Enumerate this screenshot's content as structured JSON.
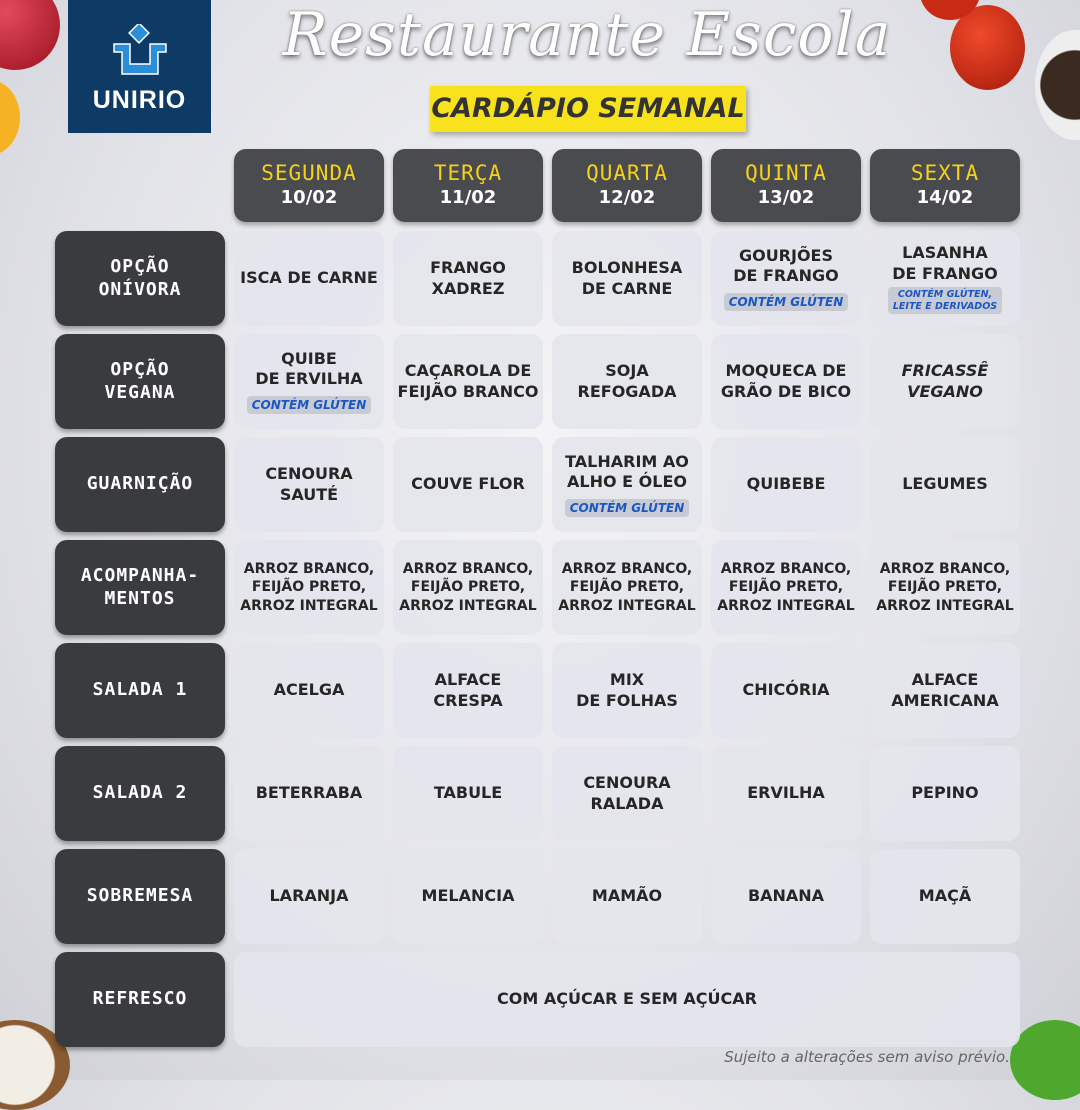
{
  "logo": {
    "text": "UNIRIO",
    "brand_color": "#0e3a66"
  },
  "title": "Restaurante Escola",
  "subtitle": "CARDÁPIO SEMANAL",
  "days": [
    {
      "name": "SEGUNDA",
      "date": "10/02"
    },
    {
      "name": "TERÇA",
      "date": "11/02"
    },
    {
      "name": "QUARTA",
      "date": "12/02"
    },
    {
      "name": "QUINTA",
      "date": "13/02"
    },
    {
      "name": "SEXTA",
      "date": "14/02"
    }
  ],
  "rows": [
    {
      "label": "OPÇÃO\nONÍVORA",
      "cells": [
        {
          "text": "ISCA DE CARNE"
        },
        {
          "text": "FRANGO\nXADREZ"
        },
        {
          "text": "BOLONHESA\nDE CARNE"
        },
        {
          "text": "GOURJÕES\nDE FRANGO",
          "note": "CONTÉM GLÚTEN"
        },
        {
          "text": "LASANHA\nDE FRANGO",
          "note": "CONTÉM GLÚTEN,\nLEITE E DERIVADOS"
        }
      ]
    },
    {
      "label": "OPÇÃO\nVEGANA",
      "cells": [
        {
          "text": "QUIBE\nDE ERVILHA",
          "note": "CONTÉM GLÚTEN"
        },
        {
          "text": "CAÇAROLA DE\nFEIJÃO BRANCO"
        },
        {
          "text": "SOJA\nREFOGADA"
        },
        {
          "text": "MOQUECA DE\nGRÃO DE BICO"
        },
        {
          "text": "FRICASSÊ\nVEGANO"
        }
      ]
    },
    {
      "label": "GUARNIÇÃO",
      "cells": [
        {
          "text": "CENOURA\nSAUTÉ"
        },
        {
          "text": "COUVE FLOR"
        },
        {
          "text": "TALHARIM AO\nALHO E ÓLEO",
          "note": "CONTÉM GLÚTEN"
        },
        {
          "text": "QUIBEBE"
        },
        {
          "text": "LEGUMES"
        }
      ]
    },
    {
      "label": "ACOMPANHA-\nMENTOS",
      "cells": [
        {
          "text": "ARROZ BRANCO,\nFEIJÃO PRETO,\nARROZ INTEGRAL"
        },
        {
          "text": "ARROZ BRANCO,\nFEIJÃO PRETO,\nARROZ INTEGRAL"
        },
        {
          "text": "ARROZ BRANCO,\nFEIJÃO PRETO,\nARROZ INTEGRAL"
        },
        {
          "text": "ARROZ BRANCO,\nFEIJÃO PRETO,\nARROZ INTEGRAL"
        },
        {
          "text": "ARROZ BRANCO,\nFEIJÃO PRETO,\nARROZ INTEGRAL"
        }
      ]
    },
    {
      "label": "SALADA 1",
      "cells": [
        {
          "text": "ACELGA"
        },
        {
          "text": "ALFACE\nCRESPA"
        },
        {
          "text": "MIX\nDE FOLHAS"
        },
        {
          "text": "CHICÓRIA"
        },
        {
          "text": "ALFACE\nAMERICANA"
        }
      ]
    },
    {
      "label": "SALADA 2",
      "cells": [
        {
          "text": "BETERRABA"
        },
        {
          "text": "TABULE"
        },
        {
          "text": "CENOURA\nRALADA"
        },
        {
          "text": "ERVILHA"
        },
        {
          "text": "PEPINO"
        }
      ]
    },
    {
      "label": "SOBREMESA",
      "cells": [
        {
          "text": "LARANJA"
        },
        {
          "text": "MELANCIA"
        },
        {
          "text": "MAMÃO"
        },
        {
          "text": "BANANA"
        },
        {
          "text": "MAÇÃ"
        }
      ]
    }
  ],
  "refresco": {
    "label": "REFRESCO",
    "text": "COM AÇÚCAR E SEM AÇÚCAR"
  },
  "footer": "Sujeito a alterações sem aviso prévio."
}
